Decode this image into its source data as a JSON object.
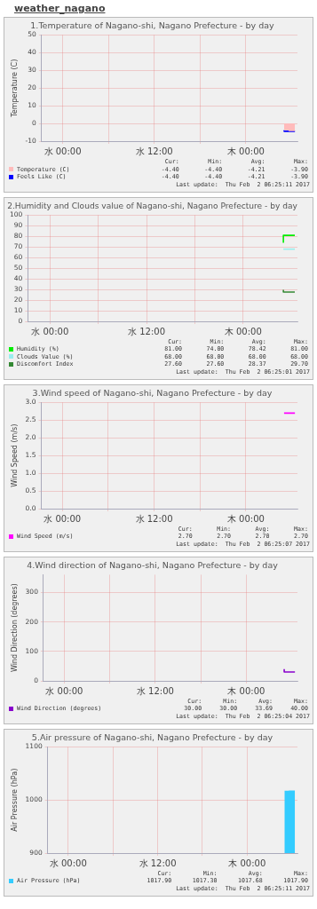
{
  "chart_data": [
    {
      "type": "other",
      "title": "weather_nagano"
    },
    {
      "type": "step",
      "title": "1.Temperature of Nagano-shi, Nagano Prefecture - by day",
      "ylabel": "Temperature (C)",
      "xlim": [
        "2017-01-31T21:15",
        "2017-02-02T06:45"
      ],
      "xticks": [
        {
          "value": "2017-02-01T00:00",
          "label": "水 00:00"
        },
        {
          "value": "2017-02-01T06:00",
          "label": null
        },
        {
          "value": "2017-02-01T12:00",
          "label": "水 12:00"
        },
        {
          "value": "2017-02-01T18:00",
          "label": null
        },
        {
          "value": "2017-02-02T00:00",
          "label": "木 00:00"
        }
      ],
      "ylim": [
        -10,
        50
      ],
      "yticks": [
        -10,
        0,
        10,
        20,
        30,
        40,
        50
      ],
      "grid": true,
      "legend": "bottom",
      "series": [
        {
          "name": "Temperature (C)",
          "type": "area",
          "color": "#ffbbbb",
          "x": [
            "2017-02-02T05:00",
            "2017-02-02T05:35",
            "2017-02-02T05:35",
            "2017-02-02T06:25"
          ],
          "values": [
            -3.9,
            -3.9,
            -4.4,
            -4.4
          ]
        },
        {
          "name": "Feels Like (C)",
          "color": "#0000ff",
          "x": [
            "2017-02-02T05:00",
            "2017-02-02T05:35",
            "2017-02-02T06:25"
          ],
          "values": [
            -3.9,
            -4.4,
            -4.4
          ]
        }
      ],
      "annotations": [
        "Cur:",
        "Min:",
        "Avg:",
        "Max:",
        "-4.40",
        "-4.40",
        "-4.21",
        "-3.90",
        "-4.40",
        "-4.40",
        "-4.21",
        "-3.90",
        "Last update:  Thu Feb  2 06:25:11 2017"
      ]
    },
    {
      "type": "step",
      "title": "2.Humidity and Clouds value of Nagano-shi, Nagano Prefecture - by day",
      "xlim": [
        "2017-01-31T21:15",
        "2017-02-02T06:45"
      ],
      "xticks": [
        {
          "value": "2017-02-01T00:00",
          "label": "水 00:00"
        },
        {
          "value": "2017-02-01T06:00",
          "label": null
        },
        {
          "value": "2017-02-01T12:00",
          "label": "水 12:00"
        },
        {
          "value": "2017-02-01T18:00",
          "label": null
        },
        {
          "value": "2017-02-02T00:00",
          "label": "木 00:00"
        }
      ],
      "ylim": [
        0,
        100
      ],
      "yticks": [
        0,
        10,
        20,
        30,
        40,
        50,
        60,
        70,
        80,
        90,
        100
      ],
      "grid": true,
      "legend": "bottom",
      "series": [
        {
          "name": "Humidity (%)",
          "color": "#00ee00",
          "x": [
            "2017-02-02T05:00",
            "2017-02-02T05:30",
            "2017-02-02T06:25"
          ],
          "values": [
            74,
            81,
            81
          ]
        },
        {
          "name": "Clouds Value (%)",
          "color": "#99eeee",
          "x": [
            "2017-02-02T05:00",
            "2017-02-02T06:25"
          ],
          "values": [
            68,
            68
          ]
        },
        {
          "name": "Discomfort Index",
          "color": "#338833",
          "x": [
            "2017-02-02T05:00",
            "2017-02-02T05:30",
            "2017-02-02T06:25"
          ],
          "values": [
            29.7,
            27.6,
            27.6
          ]
        }
      ],
      "annotations": [
        "Cur:",
        "Min:",
        "Avg:",
        "Max:",
        "81.00",
        "74.00",
        "78.42",
        "81.00",
        "68.00",
        "68.00",
        "68.00",
        "68.00",
        "27.60",
        "27.60",
        "28.37",
        "29.70",
        "Last update:  Thu Feb  2 06:25:01 2017"
      ]
    },
    {
      "type": "step",
      "title": "3.Wind speed of Nagano-shi, Nagano Prefecture - by day",
      "ylabel": "Wind Speed (m/s)",
      "xlim": [
        "2017-01-31T21:15",
        "2017-02-02T06:45"
      ],
      "xticks": [
        {
          "value": "2017-02-01T00:00",
          "label": "水 00:00"
        },
        {
          "value": "2017-02-01T06:00",
          "label": null
        },
        {
          "value": "2017-02-01T12:00",
          "label": "水 12:00"
        },
        {
          "value": "2017-02-01T18:00",
          "label": null
        },
        {
          "value": "2017-02-02T00:00",
          "label": "木 00:00"
        }
      ],
      "ylim": [
        0,
        3
      ],
      "yticks": [
        {
          "value": 0,
          "label": "0.0"
        },
        {
          "value": 0.5,
          "label": "0.5"
        },
        {
          "value": 1,
          "label": "1.0"
        },
        {
          "value": 1.5,
          "label": "1.5"
        },
        {
          "value": 2,
          "label": "2.0"
        },
        {
          "value": 2.5,
          "label": "2.5"
        },
        {
          "value": 3,
          "label": "3.0"
        }
      ],
      "grid": true,
      "legend": "bottom",
      "series": [
        {
          "name": "Wind Speed (m/s)",
          "color": "#ff00ff",
          "x": [
            "2017-02-02T05:00",
            "2017-02-02T06:25"
          ],
          "values": [
            2.7,
            2.7
          ]
        }
      ],
      "annotations": [
        "Cur:",
        "Min:",
        "Avg:",
        "Max:",
        "2.70",
        "2.70",
        "2.70",
        "2.70",
        "Last update:  Thu Feb  2 06:25:07 2017"
      ]
    },
    {
      "type": "step",
      "title": "4.Wind direction of Nagano-shi, Nagano Prefecture - by day",
      "ylabel": "Wind Direction (degrees)",
      "xlim": [
        "2017-01-31T21:15",
        "2017-02-02T06:45"
      ],
      "xticks": [
        {
          "value": "2017-02-01T00:00",
          "label": "水 00:00"
        },
        {
          "value": "2017-02-01T06:00",
          "label": null
        },
        {
          "value": "2017-02-01T12:00",
          "label": "水 12:00"
        },
        {
          "value": "2017-02-01T18:00",
          "label": null
        },
        {
          "value": "2017-02-02T00:00",
          "label": "木 00:00"
        }
      ],
      "ylim": [
        0,
        360
      ],
      "yticks": [
        0,
        100,
        200,
        300
      ],
      "grid": true,
      "legend": "bottom",
      "series": [
        {
          "name": "Wind Direction (degrees)",
          "color": "#8800cc",
          "x": [
            "2017-02-02T05:00",
            "2017-02-02T05:30",
            "2017-02-02T06:25"
          ],
          "values": [
            40,
            30,
            30
          ]
        }
      ],
      "annotations": [
        "Cur:",
        "Min:",
        "Avg:",
        "Max:",
        "30.00",
        "30.00",
        "33.69",
        "40.00",
        "Last update:  Thu Feb  2 06:25:04 2017"
      ]
    },
    {
      "type": "area",
      "title": "5.Air pressure of Nagano-shi, Nagano Prefecture - by day",
      "ylabel": "Air Pressure (hPa)",
      "xlim": [
        "2017-01-31T21:15",
        "2017-02-02T06:45"
      ],
      "xticks": [
        {
          "value": "2017-02-01T00:00",
          "label": "水 00:00"
        },
        {
          "value": "2017-02-01T06:00",
          "label": null
        },
        {
          "value": "2017-02-01T12:00",
          "label": "水 12:00"
        },
        {
          "value": "2017-02-01T18:00",
          "label": null
        },
        {
          "value": "2017-02-02T00:00",
          "label": "木 00:00"
        }
      ],
      "ylim": [
        900,
        1100
      ],
      "yticks": [
        900,
        1000,
        1100
      ],
      "grid": true,
      "legend": "bottom",
      "series": [
        {
          "name": "Air Pressure (hPa)",
          "color": "#33ccff",
          "x": [
            "2017-02-02T05:00",
            "2017-02-02T05:35",
            "2017-02-02T05:35",
            "2017-02-02T06:25"
          ],
          "values": [
            1017.3,
            1017.3,
            1017.9,
            1017.9
          ]
        }
      ],
      "annotations": [
        "Cur:",
        "Min:",
        "Avg:",
        "Max:",
        "1017.90",
        "1017.30",
        "1017.68",
        "1017.90",
        "Last update:  Thu Feb  2 06:25:11 2017"
      ]
    }
  ]
}
